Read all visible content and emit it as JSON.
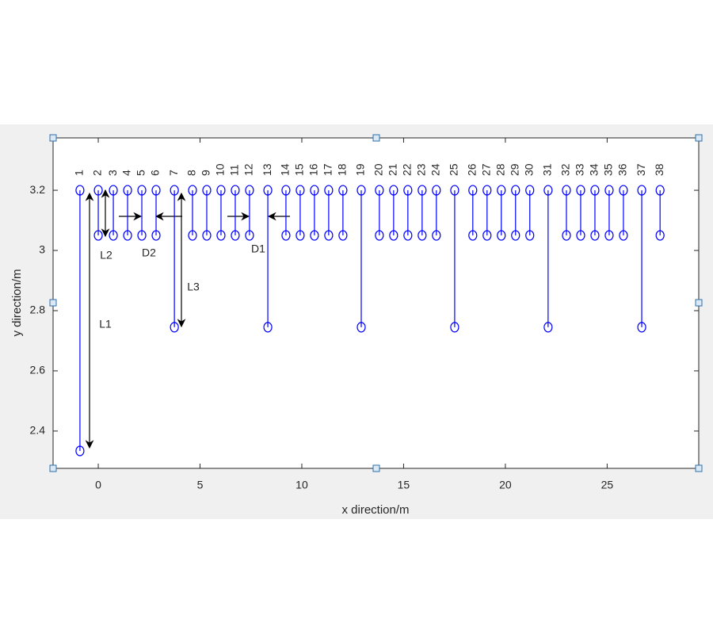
{
  "chart_data": {
    "type": "stem",
    "xlabel": "x direction/m",
    "ylabel": "y direction/m",
    "color": "#0000ff",
    "labels": [
      "1",
      "2",
      "3",
      "4",
      "5",
      "6",
      "7",
      "8",
      "9",
      "10",
      "11",
      "12",
      "13",
      "14",
      "15",
      "16",
      "17",
      "18",
      "19",
      "20",
      "21",
      "22",
      "23",
      "24",
      "25",
      "26",
      "27",
      "28",
      "29",
      "30",
      "31",
      "32",
      "33",
      "34",
      "35",
      "36",
      "37",
      "38"
    ],
    "x": [
      -0.9,
      0,
      0.74,
      1.44,
      2.14,
      2.84,
      3.74,
      4.63,
      5.33,
      6.03,
      6.73,
      7.43,
      8.33,
      9.22,
      9.92,
      10.62,
      11.32,
      12.02,
      12.92,
      13.81,
      14.51,
      15.21,
      15.91,
      16.61,
      17.51,
      18.4,
      19.1,
      19.8,
      20.5,
      21.2,
      22.1,
      23.0,
      23.7,
      24.4,
      25.1,
      25.8,
      26.7,
      27.6
    ],
    "y_top": [
      3.2,
      3.2,
      3.2,
      3.2,
      3.2,
      3.2,
      3.2,
      3.2,
      3.2,
      3.2,
      3.2,
      3.2,
      3.2,
      3.2,
      3.2,
      3.2,
      3.2,
      3.2,
      3.2,
      3.2,
      3.2,
      3.2,
      3.2,
      3.2,
      3.2,
      3.2,
      3.2,
      3.2,
      3.2,
      3.2,
      3.2,
      3.2,
      3.2,
      3.2,
      3.2,
      3.2,
      3.2,
      3.2
    ],
    "y_bottom": [
      2.334,
      3.05,
      3.05,
      3.05,
      3.05,
      3.05,
      2.745,
      3.05,
      3.05,
      3.05,
      3.05,
      3.05,
      2.745,
      3.05,
      3.05,
      3.05,
      3.05,
      3.05,
      2.745,
      3.05,
      3.05,
      3.05,
      3.05,
      3.05,
      2.745,
      3.05,
      3.05,
      3.05,
      3.05,
      3.05,
      2.745,
      3.05,
      3.05,
      3.05,
      3.05,
      3.05,
      2.745,
      3.05
    ],
    "xlim": [
      -2.22,
      29.5
    ],
    "ylim": [
      2.276,
      3.374
    ],
    "xticks": [
      0,
      5,
      10,
      15,
      20,
      25
    ],
    "yticks": [
      2.4,
      2.6,
      2.8,
      3,
      3.2
    ],
    "annotations": [
      "L1",
      "L2",
      "L3",
      "D2",
      "D1"
    ]
  }
}
